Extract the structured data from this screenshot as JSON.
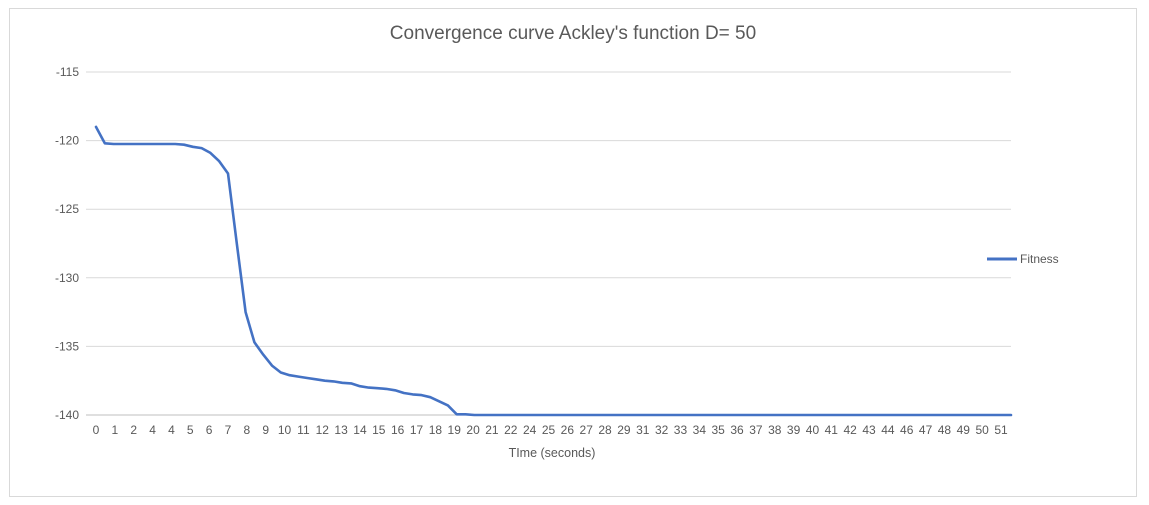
{
  "chart_data": {
    "type": "line",
    "title": "Convergence curve Ackley's function D= 50",
    "xlabel": "TIme (seconds)",
    "ylabel": "",
    "ylim": [
      -140,
      -115
    ],
    "yticks": [
      -115,
      -120,
      -125,
      -130,
      -135,
      -140
    ],
    "xticks": [
      "0",
      "1",
      "2",
      "4",
      "4",
      "5",
      "6",
      "7",
      "8",
      "9",
      "10",
      "11",
      "12",
      "13",
      "14",
      "15",
      "16",
      "17",
      "18",
      "19",
      "20",
      "21",
      "22",
      "24",
      "25",
      "26",
      "27",
      "28",
      "29",
      "31",
      "32",
      "33",
      "34",
      "35",
      "36",
      "37",
      "38",
      "39",
      "40",
      "41",
      "42",
      "43",
      "44",
      "46",
      "47",
      "48",
      "49",
      "50",
      "51"
    ],
    "grid": true,
    "legend_position": "right",
    "series": [
      {
        "name": "Fitness",
        "color": "#4472C4",
        "x": [
          0,
          0.5,
          1,
          1.5,
          2,
          3,
          4,
          4.5,
          5,
          5.5,
          6,
          6.5,
          7,
          7.5,
          8,
          8.5,
          9,
          9.5,
          10,
          10.5,
          11,
          11.5,
          12,
          12.5,
          13,
          13.5,
          14,
          14.5,
          15,
          15.5,
          16,
          16.5,
          17,
          17.5,
          18,
          18.5,
          19,
          19.5,
          20,
          20.5,
          21,
          21.5,
          22,
          23,
          24,
          30,
          40,
          51,
          52
        ],
        "values": [
          -119.0,
          -120.2,
          -120.25,
          -120.25,
          -120.25,
          -120.25,
          -120.25,
          -120.25,
          -120.3,
          -120.45,
          -120.55,
          -120.9,
          -121.5,
          -122.4,
          -127.5,
          -132.5,
          -134.7,
          -135.6,
          -136.4,
          -136.9,
          -137.1,
          -137.2,
          -137.3,
          -137.4,
          -137.5,
          -137.55,
          -137.65,
          -137.7,
          -137.9,
          -138.0,
          -138.05,
          -138.1,
          -138.2,
          -138.4,
          -138.5,
          -138.55,
          -138.7,
          -139.0,
          -139.3,
          -139.95,
          -139.95,
          -140.0,
          -140.0,
          -140.0,
          -140.0,
          -140.0,
          -140.0,
          -140.0,
          -140.0
        ]
      }
    ]
  }
}
